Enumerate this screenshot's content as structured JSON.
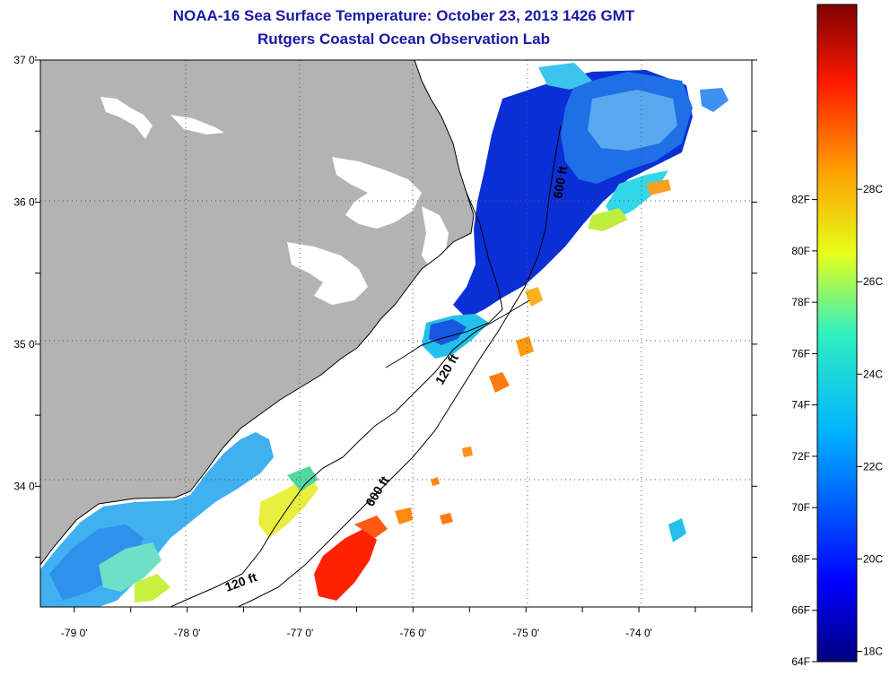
{
  "title": {
    "line1": "NOAA-16 Sea Surface Temperature:  October 23, 2013 1426 GMT",
    "line2": "Rutgers Coastal Ocean Observation Lab"
  },
  "map": {
    "lat_labels": [
      {
        "value": 37,
        "label": "37 0'"
      },
      {
        "value": 36,
        "label": "36 0'"
      },
      {
        "value": 35,
        "label": "35 0'"
      },
      {
        "value": 34,
        "label": "34 0'"
      }
    ],
    "lon_labels": [
      {
        "value": -79,
        "label": "-79 0'"
      },
      {
        "value": -78,
        "label": "-78 0'"
      },
      {
        "value": -77,
        "label": "-77 0'"
      },
      {
        "value": -76,
        "label": "-76 0'"
      },
      {
        "value": -75,
        "label": "-75 0'"
      },
      {
        "value": -74,
        "label": "-74 0'"
      }
    ],
    "lon_range": [
      -79.3,
      -73.0
    ],
    "lat_range": [
      33.15,
      37.0
    ],
    "contours": [
      {
        "label": "120 ft"
      },
      {
        "label": "600 ft"
      },
      {
        "label": "600 ft"
      },
      {
        "label": "120 ft"
      }
    ],
    "colors": {
      "land": "#b3b3b3",
      "ocean_cold": "#0a2fd6",
      "ocean_cool": "#4aa8f0",
      "ocean_mid": "#33e0e0",
      "ocean_warm": "#ff7a10",
      "ocean_hot": "#ff2200"
    }
  },
  "colorbar": {
    "fahrenheit": [
      "82F",
      "80F",
      "78F",
      "76F",
      "74F",
      "72F",
      "70F",
      "68F",
      "66F",
      "64F"
    ],
    "celsius": [
      "28C",
      "26C",
      "24C",
      "22C",
      "20C",
      "18C"
    ],
    "range_f": [
      64,
      89.6
    ]
  }
}
